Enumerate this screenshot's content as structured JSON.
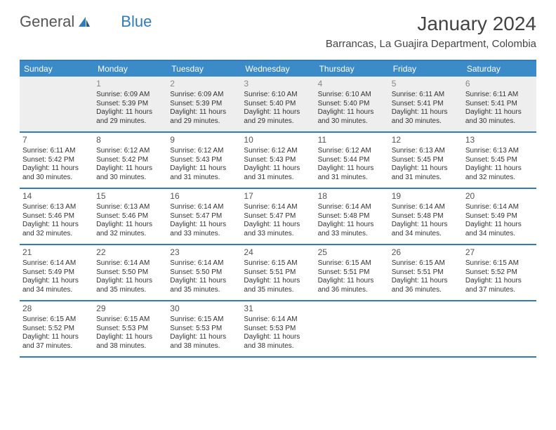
{
  "logo": {
    "part1": "General",
    "part2": "Blue"
  },
  "title": "January 2024",
  "location": "Barrancas, La Guajira Department, Colombia",
  "colors": {
    "header_bg": "#3b8bc9",
    "border": "#2f7bbf",
    "empty_bg": "#eeeeee",
    "text": "#333333",
    "title_text": "#444444"
  },
  "weekdays": [
    "Sunday",
    "Monday",
    "Tuesday",
    "Wednesday",
    "Thursday",
    "Friday",
    "Saturday"
  ],
  "weeks": [
    [
      {
        "num": "",
        "empty": true
      },
      {
        "num": "1",
        "empty": true,
        "sunrise": "Sunrise: 6:09 AM",
        "sunset": "Sunset: 5:39 PM",
        "daylight": "Daylight: 11 hours and 29 minutes."
      },
      {
        "num": "2",
        "empty": true,
        "sunrise": "Sunrise: 6:09 AM",
        "sunset": "Sunset: 5:39 PM",
        "daylight": "Daylight: 11 hours and 29 minutes."
      },
      {
        "num": "3",
        "empty": true,
        "sunrise": "Sunrise: 6:10 AM",
        "sunset": "Sunset: 5:40 PM",
        "daylight": "Daylight: 11 hours and 29 minutes."
      },
      {
        "num": "4",
        "empty": true,
        "sunrise": "Sunrise: 6:10 AM",
        "sunset": "Sunset: 5:40 PM",
        "daylight": "Daylight: 11 hours and 30 minutes."
      },
      {
        "num": "5",
        "empty": true,
        "sunrise": "Sunrise: 6:11 AM",
        "sunset": "Sunset: 5:41 PM",
        "daylight": "Daylight: 11 hours and 30 minutes."
      },
      {
        "num": "6",
        "empty": true,
        "sunrise": "Sunrise: 6:11 AM",
        "sunset": "Sunset: 5:41 PM",
        "daylight": "Daylight: 11 hours and 30 minutes."
      }
    ],
    [
      {
        "num": "7",
        "sunrise": "Sunrise: 6:11 AM",
        "sunset": "Sunset: 5:42 PM",
        "daylight": "Daylight: 11 hours and 30 minutes."
      },
      {
        "num": "8",
        "sunrise": "Sunrise: 6:12 AM",
        "sunset": "Sunset: 5:42 PM",
        "daylight": "Daylight: 11 hours and 30 minutes."
      },
      {
        "num": "9",
        "sunrise": "Sunrise: 6:12 AM",
        "sunset": "Sunset: 5:43 PM",
        "daylight": "Daylight: 11 hours and 31 minutes."
      },
      {
        "num": "10",
        "sunrise": "Sunrise: 6:12 AM",
        "sunset": "Sunset: 5:43 PM",
        "daylight": "Daylight: 11 hours and 31 minutes."
      },
      {
        "num": "11",
        "sunrise": "Sunrise: 6:12 AM",
        "sunset": "Sunset: 5:44 PM",
        "daylight": "Daylight: 11 hours and 31 minutes."
      },
      {
        "num": "12",
        "sunrise": "Sunrise: 6:13 AM",
        "sunset": "Sunset: 5:45 PM",
        "daylight": "Daylight: 11 hours and 31 minutes."
      },
      {
        "num": "13",
        "sunrise": "Sunrise: 6:13 AM",
        "sunset": "Sunset: 5:45 PM",
        "daylight": "Daylight: 11 hours and 32 minutes."
      }
    ],
    [
      {
        "num": "14",
        "sunrise": "Sunrise: 6:13 AM",
        "sunset": "Sunset: 5:46 PM",
        "daylight": "Daylight: 11 hours and 32 minutes."
      },
      {
        "num": "15",
        "sunrise": "Sunrise: 6:13 AM",
        "sunset": "Sunset: 5:46 PM",
        "daylight": "Daylight: 11 hours and 32 minutes."
      },
      {
        "num": "16",
        "sunrise": "Sunrise: 6:14 AM",
        "sunset": "Sunset: 5:47 PM",
        "daylight": "Daylight: 11 hours and 33 minutes."
      },
      {
        "num": "17",
        "sunrise": "Sunrise: 6:14 AM",
        "sunset": "Sunset: 5:47 PM",
        "daylight": "Daylight: 11 hours and 33 minutes."
      },
      {
        "num": "18",
        "sunrise": "Sunrise: 6:14 AM",
        "sunset": "Sunset: 5:48 PM",
        "daylight": "Daylight: 11 hours and 33 minutes."
      },
      {
        "num": "19",
        "sunrise": "Sunrise: 6:14 AM",
        "sunset": "Sunset: 5:48 PM",
        "daylight": "Daylight: 11 hours and 34 minutes."
      },
      {
        "num": "20",
        "sunrise": "Sunrise: 6:14 AM",
        "sunset": "Sunset: 5:49 PM",
        "daylight": "Daylight: 11 hours and 34 minutes."
      }
    ],
    [
      {
        "num": "21",
        "sunrise": "Sunrise: 6:14 AM",
        "sunset": "Sunset: 5:49 PM",
        "daylight": "Daylight: 11 hours and 34 minutes."
      },
      {
        "num": "22",
        "sunrise": "Sunrise: 6:14 AM",
        "sunset": "Sunset: 5:50 PM",
        "daylight": "Daylight: 11 hours and 35 minutes."
      },
      {
        "num": "23",
        "sunrise": "Sunrise: 6:14 AM",
        "sunset": "Sunset: 5:50 PM",
        "daylight": "Daylight: 11 hours and 35 minutes."
      },
      {
        "num": "24",
        "sunrise": "Sunrise: 6:15 AM",
        "sunset": "Sunset: 5:51 PM",
        "daylight": "Daylight: 11 hours and 35 minutes."
      },
      {
        "num": "25",
        "sunrise": "Sunrise: 6:15 AM",
        "sunset": "Sunset: 5:51 PM",
        "daylight": "Daylight: 11 hours and 36 minutes."
      },
      {
        "num": "26",
        "sunrise": "Sunrise: 6:15 AM",
        "sunset": "Sunset: 5:51 PM",
        "daylight": "Daylight: 11 hours and 36 minutes."
      },
      {
        "num": "27",
        "sunrise": "Sunrise: 6:15 AM",
        "sunset": "Sunset: 5:52 PM",
        "daylight": "Daylight: 11 hours and 37 minutes."
      }
    ],
    [
      {
        "num": "28",
        "sunrise": "Sunrise: 6:15 AM",
        "sunset": "Sunset: 5:52 PM",
        "daylight": "Daylight: 11 hours and 37 minutes."
      },
      {
        "num": "29",
        "sunrise": "Sunrise: 6:15 AM",
        "sunset": "Sunset: 5:53 PM",
        "daylight": "Daylight: 11 hours and 38 minutes."
      },
      {
        "num": "30",
        "sunrise": "Sunrise: 6:15 AM",
        "sunset": "Sunset: 5:53 PM",
        "daylight": "Daylight: 11 hours and 38 minutes."
      },
      {
        "num": "31",
        "sunrise": "Sunrise: 6:14 AM",
        "sunset": "Sunset: 5:53 PM",
        "daylight": "Daylight: 11 hours and 38 minutes."
      },
      {
        "num": "",
        "blank": true
      },
      {
        "num": "",
        "blank": true
      },
      {
        "num": "",
        "blank": true
      }
    ]
  ]
}
